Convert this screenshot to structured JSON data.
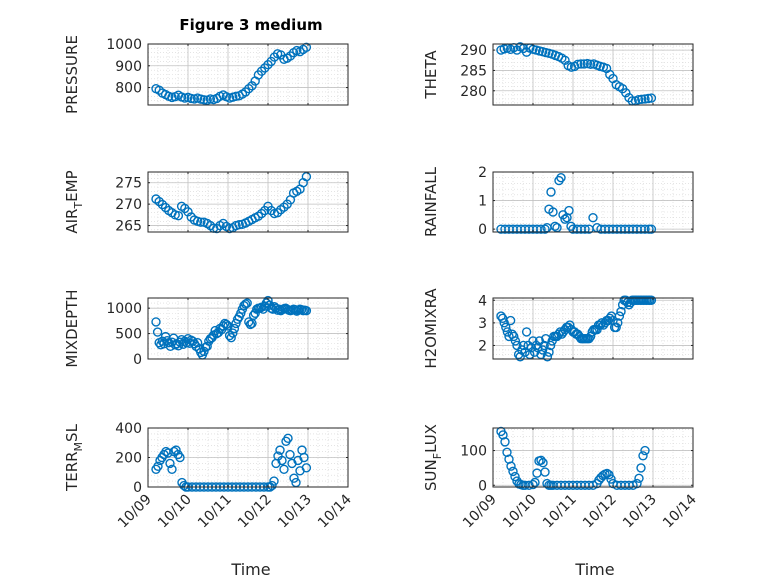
{
  "title": "Figure 3 medium",
  "xlabel": "Time",
  "x_ticks": [
    "10/09",
    "10/10",
    "10/11",
    "10/12",
    "10/13",
    "10/14"
  ],
  "x_range": [
    0,
    5
  ],
  "marker_color": "#0072BD",
  "chart_data": [
    {
      "type": "scatter",
      "name": "pressure",
      "ylabel": "PRESSURE",
      "ylim": [
        720,
        1000
      ],
      "yticks": [
        800,
        900,
        1000
      ],
      "grid": true,
      "x": [
        0.2,
        0.28,
        0.36,
        0.44,
        0.52,
        0.6,
        0.68,
        0.76,
        0.84,
        0.92,
        1.0,
        1.08,
        1.16,
        1.24,
        1.32,
        1.4,
        1.48,
        1.56,
        1.64,
        1.72,
        1.8,
        1.88,
        1.96,
        2.04,
        2.12,
        2.2,
        2.28,
        2.36,
        2.44,
        2.52,
        2.6,
        2.68,
        2.76,
        2.84,
        2.92,
        3.0,
        3.08,
        3.16,
        3.24,
        3.32,
        3.4,
        3.48,
        3.56,
        3.64,
        3.72,
        3.8,
        3.88,
        3.96
      ],
      "y": [
        795,
        788,
        775,
        768,
        760,
        755,
        758,
        765,
        757,
        752,
        755,
        750,
        748,
        752,
        747,
        744,
        742,
        748,
        745,
        750,
        760,
        766,
        758,
        752,
        756,
        760,
        762,
        770,
        780,
        795,
        808,
        830,
        858,
        875,
        890,
        905,
        920,
        940,
        955,
        950,
        930,
        935,
        945,
        960,
        970,
        965,
        975,
        985
      ]
    },
    {
      "type": "scatter",
      "name": "theta",
      "ylabel": "THETA",
      "ylim": [
        276.5,
        291.5
      ],
      "yticks": [
        280,
        285,
        290
      ],
      "grid": true,
      "x": [
        0.2,
        0.28,
        0.36,
        0.44,
        0.52,
        0.6,
        0.68,
        0.76,
        0.84,
        0.92,
        1.0,
        1.08,
        1.16,
        1.24,
        1.32,
        1.4,
        1.48,
        1.56,
        1.64,
        1.72,
        1.8,
        1.88,
        1.96,
        2.04,
        2.12,
        2.2,
        2.28,
        2.36,
        2.44,
        2.52,
        2.6,
        2.68,
        2.76,
        2.84,
        2.92,
        3.0,
        3.08,
        3.16,
        3.24,
        3.32,
        3.4,
        3.48,
        3.56,
        3.64,
        3.72,
        3.8,
        3.88,
        3.96
      ],
      "y": [
        290,
        290.3,
        290.5,
        290.2,
        290.6,
        290,
        290.8,
        290.4,
        289.5,
        290.5,
        290.2,
        290,
        289.8,
        289.6,
        289.4,
        289.2,
        289,
        288.7,
        288.4,
        288,
        287.5,
        286.2,
        285.8,
        286,
        286.5,
        286.6,
        286.6,
        286.7,
        286.5,
        286.6,
        286.3,
        286,
        285.8,
        285.5,
        284,
        283,
        281.5,
        281,
        280.5,
        279.5,
        278.3,
        277.5,
        277.5,
        277.8,
        277.9,
        278,
        278.1,
        278.2
      ]
    },
    {
      "type": "scatter",
      "name": "air_temp",
      "ylabel": "AIR_TEMP",
      "ylim": [
        263.5,
        277.5
      ],
      "yticks": [
        265,
        270,
        275
      ],
      "grid": true,
      "x": [
        0.2,
        0.28,
        0.36,
        0.44,
        0.52,
        0.6,
        0.68,
        0.76,
        0.84,
        0.92,
        1.0,
        1.08,
        1.16,
        1.24,
        1.32,
        1.4,
        1.48,
        1.56,
        1.64,
        1.72,
        1.8,
        1.88,
        1.96,
        2.04,
        2.12,
        2.2,
        2.28,
        2.36,
        2.44,
        2.52,
        2.6,
        2.68,
        2.76,
        2.84,
        2.92,
        3.0,
        3.08,
        3.16,
        3.24,
        3.32,
        3.4,
        3.48,
        3.56,
        3.64,
        3.72,
        3.8,
        3.88,
        3.96
      ],
      "y": [
        271.2,
        270.6,
        269.9,
        269.2,
        268.5,
        268,
        267.5,
        267.3,
        269.5,
        269,
        268.2,
        267,
        266.3,
        266,
        265.8,
        265.8,
        265.5,
        265,
        264.4,
        264.3,
        265,
        265.5,
        264.8,
        264.3,
        264.5,
        265,
        265.2,
        265.3,
        265.6,
        266,
        266.4,
        266.8,
        267.2,
        267.8,
        268.5,
        269.5,
        268.5,
        267.8,
        268,
        268.7,
        269.3,
        270,
        271,
        272.6,
        273,
        273.5,
        275,
        276.4
      ]
    },
    {
      "type": "scatter",
      "name": "rainfall",
      "ylabel": "RAINFALL",
      "ylim": [
        -0.1,
        2.0
      ],
      "yticks": [
        0,
        1,
        2
      ],
      "grid": true,
      "x": [
        0.2,
        0.3,
        0.4,
        0.5,
        0.6,
        0.7,
        0.8,
        0.9,
        1.0,
        1.1,
        1.2,
        1.3,
        1.35,
        1.4,
        1.45,
        1.5,
        1.55,
        1.6,
        1.65,
        1.7,
        1.75,
        1.8,
        1.85,
        1.9,
        1.95,
        2.0,
        2.1,
        2.2,
        2.3,
        2.4,
        2.5,
        2.6,
        2.7,
        2.8,
        2.9,
        3.0,
        3.1,
        3.2,
        3.3,
        3.4,
        3.5,
        3.6,
        3.7,
        3.8,
        3.9,
        3.96
      ],
      "y": [
        0,
        0,
        0,
        0,
        0,
        0,
        0,
        0,
        0,
        0,
        0,
        0,
        0.05,
        0.7,
        1.3,
        0.6,
        0.1,
        0.05,
        1.7,
        1.8,
        0.5,
        0.35,
        0.4,
        0.65,
        0.1,
        0,
        0,
        0,
        0,
        0,
        0.4,
        0.05,
        0,
        0,
        0,
        0,
        0,
        0,
        0,
        0,
        0,
        0,
        0,
        0,
        0,
        0
      ]
    },
    {
      "type": "scatter",
      "name": "mixdepth",
      "ylabel": "MIXDEPTH",
      "ylim": [
        0,
        1200
      ],
      "yticks": [
        0,
        500,
        1000
      ],
      "grid": true,
      "x": [
        0.2,
        0.24,
        0.28,
        0.32,
        0.36,
        0.4,
        0.44,
        0.48,
        0.52,
        0.56,
        0.6,
        0.64,
        0.68,
        0.72,
        0.76,
        0.8,
        0.84,
        0.88,
        0.92,
        0.96,
        1.0,
        1.04,
        1.08,
        1.12,
        1.16,
        1.2,
        1.24,
        1.28,
        1.32,
        1.36,
        1.4,
        1.44,
        1.48,
        1.52,
        1.56,
        1.6,
        1.64,
        1.68,
        1.72,
        1.76,
        1.8,
        1.84,
        1.88,
        1.92,
        1.96,
        2.0,
        2.04,
        2.08,
        2.12,
        2.16,
        2.2,
        2.24,
        2.28,
        2.32,
        2.36,
        2.4,
        2.44,
        2.48,
        2.52,
        2.56,
        2.6,
        2.64,
        2.68,
        2.72,
        2.76,
        2.8,
        2.84,
        2.88,
        2.92,
        2.96,
        3.0,
        3.04,
        3.08,
        3.12,
        3.16,
        3.2,
        3.24,
        3.28,
        3.32,
        3.36,
        3.4,
        3.44,
        3.48,
        3.52,
        3.56,
        3.6,
        3.64,
        3.68,
        3.72,
        3.76,
        3.8,
        3.84,
        3.88,
        3.92,
        3.96
      ],
      "y": [
        730,
        530,
        320,
        280,
        350,
        300,
        440,
        360,
        320,
        250,
        330,
        410,
        280,
        300,
        260,
        330,
        380,
        290,
        350,
        320,
        400,
        310,
        370,
        350,
        300,
        250,
        320,
        200,
        130,
        80,
        150,
        230,
        250,
        350,
        400,
        420,
        470,
        560,
        500,
        520,
        600,
        580,
        650,
        700,
        680,
        650,
        460,
        420,
        510,
        600,
        700,
        780,
        830,
        900,
        980,
        1050,
        1080,
        1100,
        730,
        680,
        700,
        860,
        900,
        980,
        1000,
        1000,
        1020,
        980,
        1040,
        1100,
        1150,
        1060,
        1000,
        980,
        1030,
        1000,
        960,
        980,
        950,
        970,
        990,
        1000,
        980,
        960,
        950,
        960,
        980,
        970,
        940,
        960,
        980,
        970,
        950,
        960,
        950
      ]
    },
    {
      "type": "scatter",
      "name": "h2omixra",
      "ylabel": "H2OMIXRA",
      "ylim": [
        1.4,
        4.1
      ],
      "yticks": [
        2,
        3,
        4
      ],
      "grid": true,
      "x": [
        0.2,
        0.24,
        0.28,
        0.32,
        0.36,
        0.4,
        0.44,
        0.48,
        0.52,
        0.56,
        0.6,
        0.64,
        0.68,
        0.72,
        0.76,
        0.8,
        0.84,
        0.88,
        0.92,
        0.96,
        1.0,
        1.04,
        1.08,
        1.12,
        1.16,
        1.2,
        1.24,
        1.28,
        1.32,
        1.36,
        1.4,
        1.44,
        1.48,
        1.52,
        1.56,
        1.6,
        1.64,
        1.68,
        1.72,
        1.76,
        1.8,
        1.84,
        1.88,
        1.92,
        1.96,
        2.0,
        2.04,
        2.08,
        2.12,
        2.16,
        2.2,
        2.24,
        2.28,
        2.32,
        2.36,
        2.4,
        2.44,
        2.48,
        2.52,
        2.56,
        2.6,
        2.64,
        2.68,
        2.72,
        2.76,
        2.8,
        2.84,
        2.88,
        2.92,
        2.96,
        3.0,
        3.04,
        3.08,
        3.12,
        3.16,
        3.2,
        3.24,
        3.28,
        3.32,
        3.36,
        3.4,
        3.44,
        3.48,
        3.52,
        3.56,
        3.6,
        3.64,
        3.68,
        3.72,
        3.76,
        3.8,
        3.84,
        3.88,
        3.92,
        3.96
      ],
      "y": [
        3.3,
        3.2,
        3.0,
        2.8,
        2.6,
        2.4,
        3.1,
        2.5,
        2.4,
        2.2,
        2.0,
        1.6,
        1.5,
        1.8,
        2.0,
        1.7,
        2.6,
        2.0,
        1.6,
        1.9,
        2.2,
        1.7,
        2.0,
        1.9,
        2.2,
        1.6,
        1.8,
        2.0,
        2.3,
        1.5,
        1.7,
        2.0,
        2.2,
        2.4,
        2.4,
        2.4,
        2.5,
        2.6,
        2.5,
        2.6,
        2.7,
        2.8,
        2.8,
        2.9,
        2.7,
        2.6,
        2.6,
        2.5,
        2.5,
        2.4,
        2.3,
        2.3,
        2.3,
        2.3,
        2.3,
        2.3,
        2.4,
        2.6,
        2.7,
        2.7,
        2.7,
        2.9,
        2.9,
        3.0,
        2.9,
        3.0,
        3.1,
        3.1,
        3.2,
        3.3,
        3.1,
        2.8,
        2.8,
        3.0,
        3.3,
        3.5,
        3.8,
        4.0,
        4.0,
        3.9,
        3.8,
        3.9,
        4.0,
        4.0,
        4.0,
        4.0,
        4.0,
        4.0,
        4.0,
        4.0,
        4.0,
        4.0,
        4.0,
        4.0,
        4.0
      ]
    },
    {
      "type": "scatter",
      "name": "terr_msl",
      "ylabel": "TERR_MSL",
      "ylim": [
        0,
        400
      ],
      "yticks": [
        0,
        200,
        400
      ],
      "grid": true,
      "x": [
        0.2,
        0.25,
        0.3,
        0.35,
        0.4,
        0.45,
        0.5,
        0.55,
        0.6,
        0.65,
        0.7,
        0.75,
        0.8,
        0.85,
        0.9,
        0.95,
        1.0,
        1.1,
        1.2,
        1.3,
        1.4,
        1.5,
        1.6,
        1.7,
        1.8,
        1.9,
        2.0,
        2.1,
        2.2,
        2.3,
        2.4,
        2.5,
        2.6,
        2.7,
        2.8,
        2.9,
        3.0,
        3.05,
        3.1,
        3.15,
        3.2,
        3.25,
        3.3,
        3.35,
        3.4,
        3.45,
        3.5,
        3.55,
        3.6,
        3.65,
        3.7,
        3.75,
        3.8,
        3.85,
        3.9,
        3.96
      ],
      "y": [
        120,
        140,
        180,
        200,
        220,
        240,
        230,
        160,
        120,
        240,
        250,
        220,
        200,
        30,
        10,
        0,
        0,
        0,
        0,
        0,
        0,
        0,
        0,
        0,
        0,
        0,
        0,
        0,
        0,
        0,
        0,
        0,
        0,
        0,
        0,
        0,
        0,
        0,
        10,
        40,
        160,
        210,
        250,
        180,
        120,
        310,
        330,
        220,
        160,
        60,
        30,
        180,
        110,
        250,
        200,
        130
      ]
    },
    {
      "type": "scatter",
      "name": "sun_flux",
      "ylabel": "SUN_FLUX",
      "ylim": [
        -5,
        165
      ],
      "yticks": [
        0,
        100
      ],
      "grid": true,
      "x": [
        0.2,
        0.25,
        0.3,
        0.35,
        0.4,
        0.45,
        0.5,
        0.55,
        0.6,
        0.65,
        0.7,
        0.75,
        0.8,
        0.9,
        1.0,
        1.05,
        1.1,
        1.15,
        1.2,
        1.25,
        1.3,
        1.35,
        1.4,
        1.45,
        1.5,
        1.6,
        1.7,
        1.8,
        1.9,
        2.0,
        2.1,
        2.2,
        2.3,
        2.4,
        2.5,
        2.6,
        2.65,
        2.7,
        2.75,
        2.8,
        2.85,
        2.9,
        2.95,
        3.0,
        3.1,
        3.2,
        3.3,
        3.4,
        3.5,
        3.6,
        3.65,
        3.7,
        3.75,
        3.8
      ],
      "y": [
        155,
        145,
        125,
        95,
        75,
        55,
        40,
        25,
        12,
        4,
        2,
        0,
        0,
        0,
        2,
        8,
        35,
        70,
        72,
        65,
        38,
        5,
        0,
        0,
        0,
        0,
        0,
        0,
        0,
        0,
        0,
        0,
        0,
        0,
        0,
        5,
        15,
        22,
        28,
        32,
        34,
        30,
        18,
        5,
        0,
        0,
        0,
        0,
        0,
        5,
        20,
        50,
        85,
        100
      ]
    }
  ]
}
